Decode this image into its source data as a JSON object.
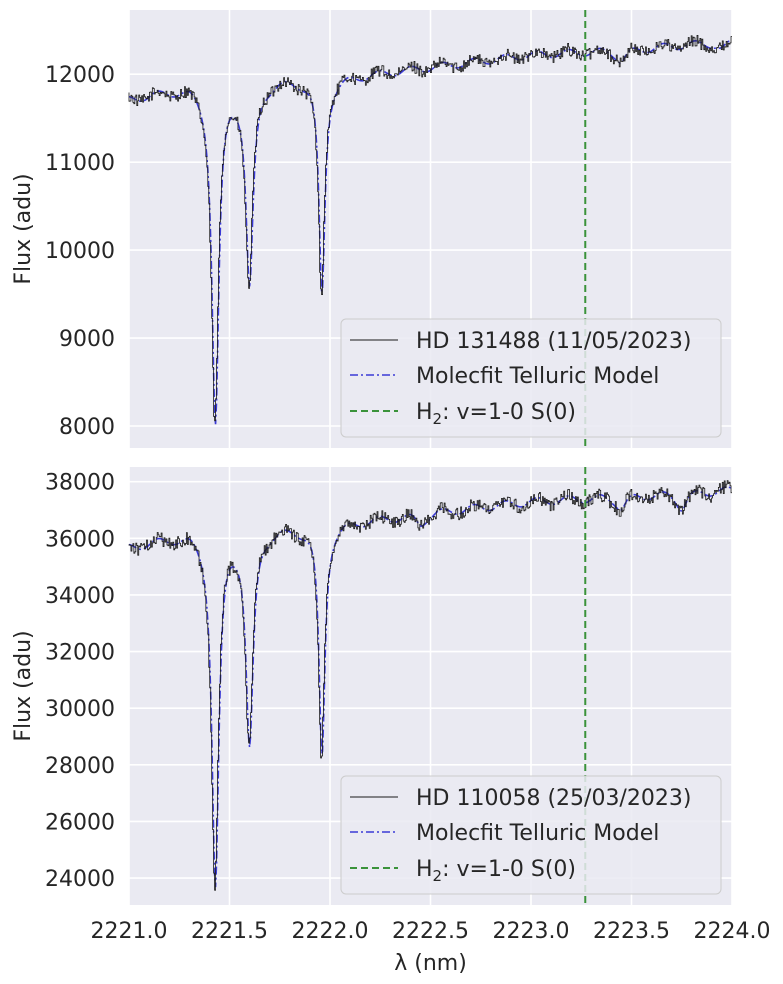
{
  "chart_data": {
    "type": "line",
    "shared_x": {
      "label": "λ (nm)",
      "range": [
        2221.0,
        2224.0
      ],
      "ticks": [
        2221.0,
        2221.5,
        2222.0,
        2222.5,
        2223.0,
        2223.5,
        2224.0
      ],
      "tick_labels": [
        "2221.0",
        "2221.5",
        "2222.0",
        "2222.5",
        "2223.0",
        "2223.5",
        "2224.0"
      ]
    },
    "vline": {
      "x": 2223.27,
      "style": "dashed",
      "color": "#3a923a"
    },
    "colors": {
      "background": "#eaeaf2",
      "grid": "#ffffff",
      "data": "#1a1a1a",
      "model": "#3b3bd6",
      "marker": "#3a923a"
    },
    "grid": true,
    "legend_position": "lower-right",
    "panels": [
      {
        "ylabel": "Flux (adu)",
        "ylim": [
          7750,
          12730
        ],
        "yticks": [
          8000,
          9000,
          10000,
          11000,
          12000
        ],
        "ytick_labels": [
          "8000",
          "9000",
          "10000",
          "11000",
          "12000"
        ],
        "continuum": {
          "x": [
            2221.0,
            2221.3,
            2221.8,
            2222.0,
            2222.5,
            2223.0,
            2223.5,
            2224.0
          ],
          "y": [
            11720,
            11870,
            11950,
            11950,
            12080,
            12220,
            12280,
            12380
          ]
        },
        "absorption_lines": [
          {
            "center": 2221.43,
            "depth": 3850,
            "width": 0.021
          },
          {
            "center": 2221.6,
            "depth": 2300,
            "width": 0.022
          },
          {
            "center": 2221.96,
            "depth": 2450,
            "width": 0.018
          },
          {
            "center": 2223.45,
            "depth": 120,
            "width": 0.03
          },
          {
            "center": 2223.95,
            "depth": 90,
            "width": 0.03
          }
        ],
        "noise": 70,
        "legend": {
          "data": "HD 131488 (11/05/2023)",
          "model": "Molecfit Telluric Model",
          "marker_main": "H",
          "marker_sub": "2",
          "marker_rest": ": v=1-0 S(0)"
        }
      },
      {
        "ylabel": "Flux (adu)",
        "ylim": [
          23050,
          38520
        ],
        "yticks": [
          24000,
          26000,
          28000,
          30000,
          32000,
          34000,
          36000,
          38000
        ],
        "ytick_labels": [
          "24000",
          "26000",
          "28000",
          "30000",
          "32000",
          "34000",
          "36000",
          "38000"
        ],
        "continuum": {
          "x": [
            2221.0,
            2221.3,
            2221.8,
            2222.0,
            2222.5,
            2223.0,
            2223.5,
            2224.0
          ],
          "y": [
            35700,
            36200,
            36400,
            36500,
            36900,
            37300,
            37500,
            37700
          ]
        },
        "absorption_lines": [
          {
            "center": 2221.43,
            "depth": 12500,
            "width": 0.021
          },
          {
            "center": 2221.6,
            "depth": 7600,
            "width": 0.022
          },
          {
            "center": 2221.96,
            "depth": 8200,
            "width": 0.018
          },
          {
            "center": 2222.45,
            "depth": 350,
            "width": 0.03
          },
          {
            "center": 2223.45,
            "depth": 400,
            "width": 0.03
          },
          {
            "center": 2223.75,
            "depth": 500,
            "width": 0.03
          }
        ],
        "noise": 230,
        "legend": {
          "data": "HD 110058 (25/03/2023)",
          "model": "Molecfit Telluric Model",
          "marker_main": "H",
          "marker_sub": "2",
          "marker_rest": ": v=1-0 S(0)"
        }
      }
    ]
  }
}
